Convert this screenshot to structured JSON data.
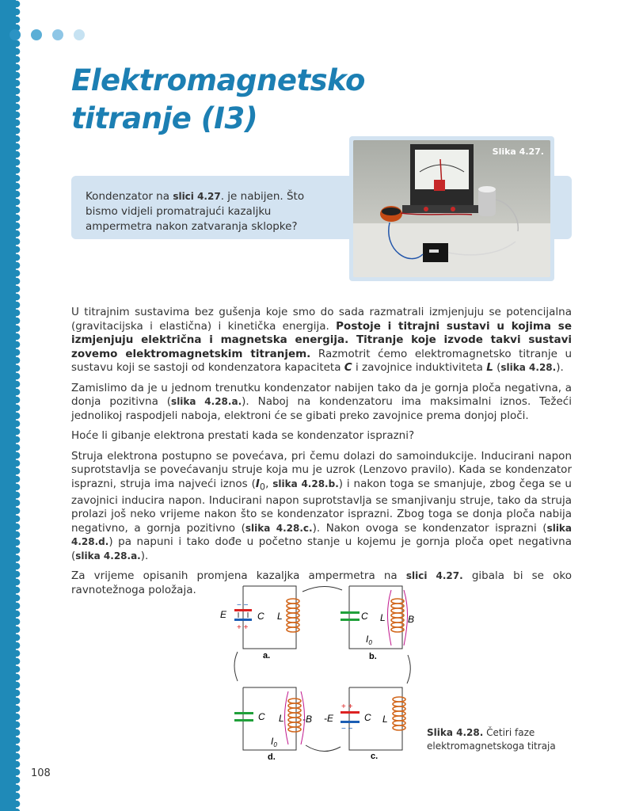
{
  "colors": {
    "accent": "#1c7fb3",
    "spine": "#1f8ab8",
    "box": "#d3e3f1"
  },
  "title": {
    "line1": "Elektromagnetsko",
    "line2": "titranje (I3)"
  },
  "photo": {
    "caption": "Slika 4.27."
  },
  "question": {
    "pre": "Kondenzator na ",
    "ref": "slici 4.27",
    "post": ". je nabijen. Što bismo vidjeli promatrajući kazaljku ampermetra nakon zatvaranja sklopke?"
  },
  "body": {
    "p1": {
      "t1": "U titrajnim sustavima bez gušenja koje smo do sada razmatrali izmjenjuju se potencijalna (gravitacijska i elastična) i kinetička energija. ",
      "b1": "Postoje i titrajni sustavi u kojima se izmjenjuju električna i magnetska energija. Titranje koje izvode takvi sustavi zovemo elektromagnetskim titranjem.",
      "t2": " Razmotrit ćemo elektromagnetsko titranje u sustavu koji se sastoji od kondenzatora kapaciteta ",
      "c": "C",
      "t3": " i zavojnice induktiviteta ",
      "l": "L",
      "t4": " (",
      "ref": "slika 4.28.",
      "t5": ")."
    },
    "p2": {
      "t1": "Zamislimo da je u jednom trenutku kondenzator nabijen tako da je gornja ploča negativna, a donja pozitivna (",
      "ref": "slika 4.28.a.",
      "t2": "). Naboj na kondenzatoru ima maksimalni iznos. Težeći jednolikoj raspodjeli naboja, elektroni će se gibati preko zavojnice prema donjoj ploči."
    },
    "p3": "Hoće li gibanje elektrona prestati kada se kondenzator isprazni?",
    "p4": {
      "t1": "Struja elektrona postupno se povećava, pri čemu dolazi do samoindukcije. Inducirani napon suprotstavlja se povećavanju struje koja mu je uzrok (Lenzovo pravilo). Kada se kondenzator isprazni, struja ima najveći iznos (",
      "i": "I",
      "sub": "0",
      "t2": ", ",
      "ref1": "slika 4.28.b.",
      "t3": ") i nakon toga se smanjuje, zbog čega se u zavojnici inducira napon. Inducirani napon suprotstavlja se smanjivanju struje, tako da struja prolazi još neko vrijeme nakon što se kondenzator isprazni. Zbog toga se donja ploča nabija negativno, a gornja pozitivno (",
      "ref2": "slika 4.28.c.",
      "t4": "). Nakon ovoga se kondenzator isprazni (",
      "ref3": "slika 4.28.d.",
      "t5": ") pa napuni i tako dođe u početno stanje u kojemu je gornja ploča opet negativna (",
      "ref4": "slika 4.28.a.",
      "t6": ")."
    },
    "p5": {
      "t1": "Za vrijeme opisanih promjena kazaljka ampermetra na ",
      "ref": "slici 4.27.",
      "t2": " gibala bi se oko ravnotežnoga položaja."
    }
  },
  "diagram": {
    "panel_a": {
      "label": "a.",
      "e": "E",
      "c": "C",
      "l": "L",
      "minus": "− −",
      "plus": "+ +"
    },
    "panel_b": {
      "label": "b.",
      "c": "C",
      "l": "L",
      "b": "B",
      "i": "I",
      "i_sub": "0"
    },
    "panel_c": {
      "label": "c.",
      "c": "C",
      "l": "L",
      "e": "-E",
      "plus": "+ +",
      "minus": "− −"
    },
    "panel_d": {
      "label": "d.",
      "c": "C",
      "l": "L",
      "b": "-B",
      "i": "I",
      "i_sub": "0"
    }
  },
  "figure_caption": {
    "ref": "Slika 4.28.",
    "text": " Četiri faze elektromagnetskoga titraja"
  },
  "page_number": "108"
}
